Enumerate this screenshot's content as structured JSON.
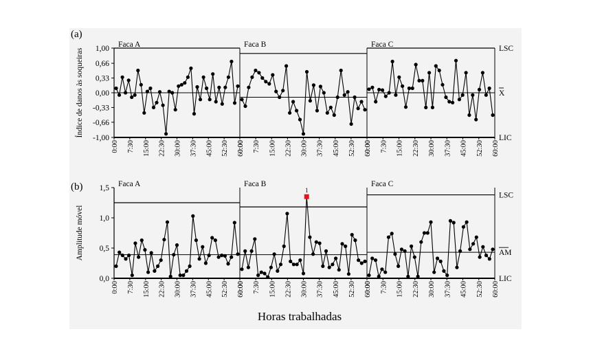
{
  "xlabel": "Horas trabalhadas",
  "chart_data": [
    {
      "type": "line",
      "panel_label": "(a)",
      "ylabel": "Índice de danos às soqueiras",
      "ylim": [
        -1.0,
        1.0
      ],
      "yticks": [
        "1,00",
        "0,66",
        "0,33",
        "0,00",
        "-0,33",
        "-0,66",
        "-1,00"
      ],
      "ytick_values": [
        1.0,
        0.66,
        0.33,
        0.0,
        -0.33,
        -0.66,
        -1.0
      ],
      "xticks": [
        "0:00",
        "7:30",
        "15:00",
        "22:30",
        "30:00",
        "37:30",
        "45:00",
        "52:30",
        "60:00"
      ],
      "segments": [
        {
          "name": "Faca A",
          "ucl": 1.0,
          "cl": 0.0,
          "lcl": -1.0,
          "values": [
            0.1,
            -0.05,
            0.35,
            0.0,
            0.28,
            -0.1,
            -0.05,
            0.5,
            0.18,
            -0.45,
            0.03,
            0.1,
            -0.33,
            -0.22,
            0.02,
            -0.28,
            -0.92,
            0.03,
            0.0,
            -0.38,
            0.15,
            0.18,
            0.22,
            0.35,
            0.55,
            -0.47,
            0.13,
            -0.15,
            0.35,
            0.1,
            -0.15,
            0.42,
            -0.2,
            0.12,
            -0.25,
            0.12,
            0.35,
            0.7,
            -0.23,
            0.15
          ]
        },
        {
          "name": "Faca B",
          "ucl": 0.88,
          "cl": -0.1,
          "lcl": -1.0,
          "values": [
            -0.15,
            -0.3,
            0.12,
            0.35,
            0.5,
            0.45,
            0.33,
            0.25,
            0.2,
            0.4,
            0.03,
            -0.1,
            0.05,
            0.6,
            -0.45,
            -0.2,
            -0.4,
            -0.6,
            -0.92,
            0.47,
            -0.18,
            0.17,
            -0.4,
            0.14,
            0.0,
            -0.45,
            -0.33,
            -0.5,
            -0.1,
            0.5,
            -0.05,
            0.02,
            -0.7,
            -0.1,
            -0.35,
            -0.2,
            -0.38
          ]
        },
        {
          "name": "Faca C",
          "ucl": 1.0,
          "cl": 0.0,
          "lcl": -1.0,
          "values": [
            0.08,
            0.12,
            -0.2,
            0.07,
            0.06,
            -0.08,
            0.0,
            0.7,
            -0.05,
            0.35,
            0.15,
            -0.32,
            0.1,
            0.1,
            0.63,
            0.27,
            0.27,
            -0.33,
            0.45,
            -0.33,
            0.6,
            0.5,
            0.18,
            -0.1,
            -0.2,
            -0.22,
            0.72,
            -0.15,
            -0.05,
            0.45,
            -0.5,
            -0.05,
            -0.6,
            0.07,
            0.45,
            -0.05,
            0.1,
            -0.5
          ]
        }
      ],
      "right_labels": {
        "ucl": "LSC",
        "cl": "X",
        "lcl": "LIC"
      }
    },
    {
      "type": "line",
      "panel_label": "(b)",
      "ylabel": "Amplitude móvel",
      "ylim": [
        0,
        1.5
      ],
      "yticks": [
        "1,5",
        "1,0",
        "0,5",
        "0,0"
      ],
      "ytick_values": [
        1.5,
        1.0,
        0.5,
        0.0
      ],
      "xticks": [
        "0:00",
        "7:30",
        "15:00",
        "22:30",
        "30:00",
        "37:30",
        "45:00",
        "52:30",
        "60:00"
      ],
      "segments": [
        {
          "name": "Faca A",
          "ucl": 1.25,
          "cl": 0.39,
          "values": [
            0.2,
            0.43,
            0.38,
            0.32,
            0.38,
            0.05,
            0.58,
            0.35,
            0.63,
            0.47,
            0.1,
            0.42,
            0.12,
            0.2,
            0.3,
            0.64,
            0.93,
            0.03,
            0.39,
            0.55,
            0.05,
            0.05,
            0.12,
            0.2,
            1.03,
            0.63,
            0.32,
            0.52,
            0.25,
            0.38,
            0.67,
            0.63,
            0.35,
            0.38,
            0.37,
            0.24,
            0.35,
            0.92,
            0.4
          ]
        },
        {
          "name": "Faca B",
          "ucl": 1.18,
          "cl": 0.39,
          "values": [
            0.15,
            0.45,
            0.18,
            0.45,
            0.65,
            0.05,
            0.1,
            0.08,
            0.02,
            0.18,
            0.4,
            0.12,
            0.23,
            0.53,
            1.07,
            0.28,
            0.23,
            0.23,
            0.3,
            0.08,
            1.35,
            0.68,
            0.4,
            0.6,
            0.58,
            0.2,
            0.45,
            0.18,
            0.23,
            0.33,
            0.14,
            0.57,
            0.53,
            0.07,
            0.72,
            0.63,
            0.3,
            0.25,
            0.28
          ]
        },
        {
          "name": "Faca C",
          "ucl": 1.38,
          "cl": 0.43,
          "values": [
            0.05,
            0.33,
            0.3,
            0.03,
            0.15,
            0.1,
            0.68,
            0.74,
            0.4,
            0.2,
            0.48,
            0.45,
            0.03,
            0.53,
            0.35,
            0.03,
            0.6,
            0.75,
            0.75,
            0.93,
            0.1,
            0.33,
            0.28,
            0.12,
            0.05,
            0.95,
            0.92,
            0.18,
            0.45,
            0.85,
            0.93,
            0.48,
            0.57,
            0.68,
            0.35,
            0.52,
            0.38,
            0.32,
            0.48
          ]
        }
      ],
      "out_of_control": {
        "segment": 1,
        "index": 20,
        "label": "1",
        "color": "#e8131b"
      },
      "right_labels": {
        "ucl": "LSC",
        "cl": "AM",
        "lcl": "LIC"
      }
    }
  ]
}
